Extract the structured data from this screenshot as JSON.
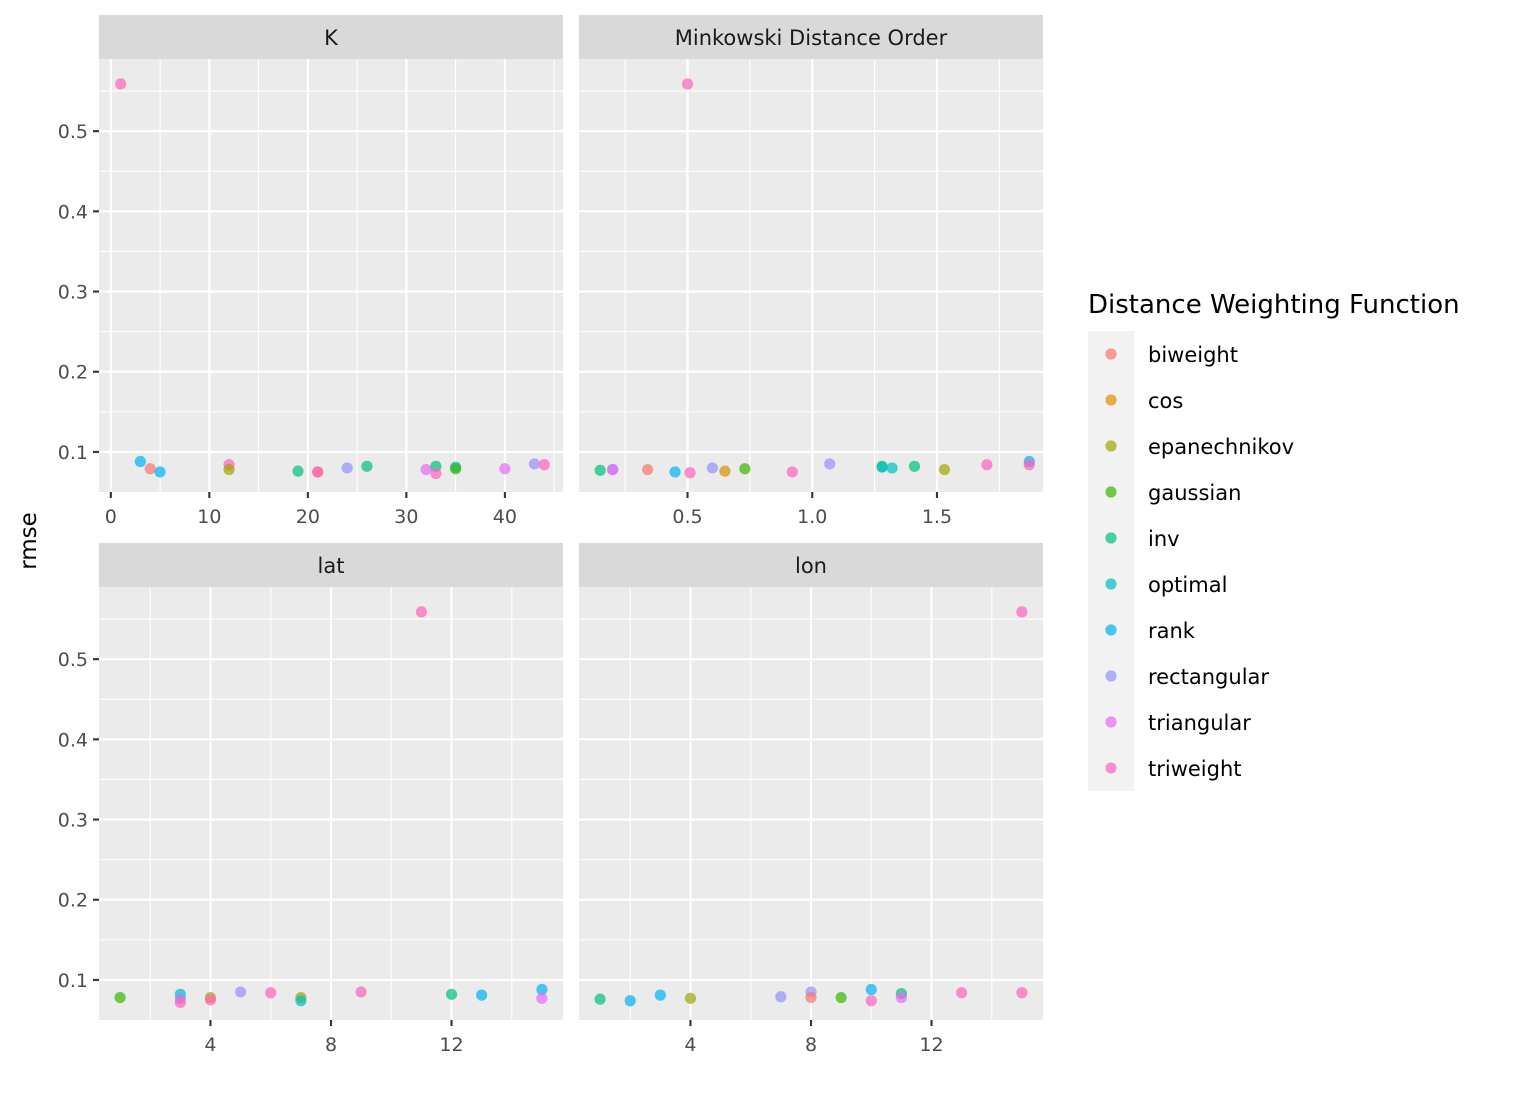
{
  "chart_data": {
    "type": "scatter",
    "ylabel": "rmse",
    "ylim": [
      0.05,
      0.59
    ],
    "y_ticks": [
      0.1,
      0.2,
      0.3,
      0.4,
      0.5
    ],
    "y_tick_labels": [
      "0.1",
      "0.2",
      "0.3",
      "0.4",
      "0.5"
    ],
    "legend": {
      "title": "Distance Weighting Function",
      "position": "right",
      "entries": [
        {
          "name": "biweight",
          "color": "#F8766D"
        },
        {
          "name": "cos",
          "color": "#D89000"
        },
        {
          "name": "epanechnikov",
          "color": "#A3A500"
        },
        {
          "name": "gaussian",
          "color": "#39B600"
        },
        {
          "name": "inv",
          "color": "#00BF7D"
        },
        {
          "name": "optimal",
          "color": "#00BFC4"
        },
        {
          "name": "rank",
          "color": "#00B0F6"
        },
        {
          "name": "rectangular",
          "color": "#9590FF"
        },
        {
          "name": "triangular",
          "color": "#E76BF3"
        },
        {
          "name": "triweight",
          "color": "#FF62BC"
        }
      ]
    },
    "panels": [
      {
        "strip": "K",
        "xlim": [
          -1.2,
          45.9
        ],
        "x_ticks": [
          0,
          10,
          20,
          30,
          40
        ],
        "x_tick_labels": [
          "0",
          "10",
          "20",
          "30",
          "40"
        ],
        "x_minor": [
          5,
          15,
          25,
          35,
          45
        ],
        "points": [
          {
            "x": 1,
            "y": 0.559,
            "s": "triweight"
          },
          {
            "x": 3,
            "y": 0.088,
            "s": "rank"
          },
          {
            "x": 4,
            "y": 0.079,
            "s": "biweight"
          },
          {
            "x": 5,
            "y": 0.075,
            "s": "rank"
          },
          {
            "x": 12,
            "y": 0.084,
            "s": "triweight"
          },
          {
            "x": 12,
            "y": 0.078,
            "s": "epanechnikov"
          },
          {
            "x": 19,
            "y": 0.076,
            "s": "inv"
          },
          {
            "x": 21,
            "y": 0.075,
            "s": "biweight"
          },
          {
            "x": 21,
            "y": 0.075,
            "s": "triweight"
          },
          {
            "x": 24,
            "y": 0.08,
            "s": "rectangular"
          },
          {
            "x": 26,
            "y": 0.082,
            "s": "inv"
          },
          {
            "x": 32,
            "y": 0.078,
            "s": "triangular"
          },
          {
            "x": 33,
            "y": 0.082,
            "s": "inv"
          },
          {
            "x": 33,
            "y": 0.073,
            "s": "triweight"
          },
          {
            "x": 35,
            "y": 0.081,
            "s": "optimal"
          },
          {
            "x": 35,
            "y": 0.079,
            "s": "gaussian"
          },
          {
            "x": 40,
            "y": 0.079,
            "s": "triangular"
          },
          {
            "x": 43,
            "y": 0.085,
            "s": "rectangular"
          },
          {
            "x": 44,
            "y": 0.084,
            "s": "triweight"
          }
        ]
      },
      {
        "strip": "Minkowski Distance Order",
        "xlim": [
          0.065,
          1.925
        ],
        "x_ticks": [
          0.5,
          1.0,
          1.5
        ],
        "x_tick_labels": [
          "0.5",
          "1.0",
          "1.5"
        ],
        "x_minor": [
          0.25,
          0.75,
          1.25,
          1.75
        ],
        "points": [
          {
            "x": 0.15,
            "y": 0.077,
            "s": "inv"
          },
          {
            "x": 0.2,
            "y": 0.078,
            "s": "rectangular"
          },
          {
            "x": 0.2,
            "y": 0.078,
            "s": "triangular"
          },
          {
            "x": 0.34,
            "y": 0.078,
            "s": "biweight"
          },
          {
            "x": 0.5,
            "y": 0.559,
            "s": "triweight"
          },
          {
            "x": 0.45,
            "y": 0.075,
            "s": "rank"
          },
          {
            "x": 0.51,
            "y": 0.074,
            "s": "triweight"
          },
          {
            "x": 0.6,
            "y": 0.08,
            "s": "rectangular"
          },
          {
            "x": 0.65,
            "y": 0.076,
            "s": "cos"
          },
          {
            "x": 0.73,
            "y": 0.079,
            "s": "gaussian"
          },
          {
            "x": 0.92,
            "y": 0.075,
            "s": "triweight"
          },
          {
            "x": 1.07,
            "y": 0.085,
            "s": "rectangular"
          },
          {
            "x": 1.28,
            "y": 0.082,
            "s": "inv"
          },
          {
            "x": 1.28,
            "y": 0.081,
            "s": "optimal"
          },
          {
            "x": 1.32,
            "y": 0.08,
            "s": "optimal"
          },
          {
            "x": 1.41,
            "y": 0.082,
            "s": "inv"
          },
          {
            "x": 1.53,
            "y": 0.078,
            "s": "epanechnikov"
          },
          {
            "x": 1.7,
            "y": 0.084,
            "s": "triweight"
          },
          {
            "x": 1.87,
            "y": 0.088,
            "s": "rank"
          },
          {
            "x": 1.87,
            "y": 0.084,
            "s": "triweight"
          }
        ]
      },
      {
        "strip": "lat",
        "xlim": [
          0.3,
          15.7
        ],
        "x_ticks": [
          4,
          8,
          12
        ],
        "x_tick_labels": [
          "4",
          "8",
          "12"
        ],
        "x_minor": [
          2,
          6,
          10,
          14
        ],
        "points": [
          {
            "x": 1,
            "y": 0.078,
            "s": "gaussian"
          },
          {
            "x": 3,
            "y": 0.082,
            "s": "optimal"
          },
          {
            "x": 3,
            "y": 0.077,
            "s": "rectangular"
          },
          {
            "x": 3,
            "y": 0.072,
            "s": "triweight"
          },
          {
            "x": 4,
            "y": 0.078,
            "s": "epanechnikov"
          },
          {
            "x": 4,
            "y": 0.075,
            "s": "triweight"
          },
          {
            "x": 5,
            "y": 0.085,
            "s": "rectangular"
          },
          {
            "x": 6,
            "y": 0.084,
            "s": "triweight"
          },
          {
            "x": 7,
            "y": 0.078,
            "s": "epanechnikov"
          },
          {
            "x": 7,
            "y": 0.074,
            "s": "optimal"
          },
          {
            "x": 9,
            "y": 0.085,
            "s": "triweight"
          },
          {
            "x": 11,
            "y": 0.559,
            "s": "triweight"
          },
          {
            "x": 12,
            "y": 0.082,
            "s": "inv"
          },
          {
            "x": 13,
            "y": 0.081,
            "s": "rank"
          },
          {
            "x": 15,
            "y": 0.088,
            "s": "rank"
          },
          {
            "x": 15,
            "y": 0.077,
            "s": "triangular"
          }
        ]
      },
      {
        "strip": "lon",
        "xlim": [
          0.3,
          15.7
        ],
        "x_ticks": [
          4,
          8,
          12
        ],
        "x_tick_labels": [
          "4",
          "8",
          "12"
        ],
        "x_minor": [
          2,
          6,
          10,
          14
        ],
        "points": [
          {
            "x": 1,
            "y": 0.076,
            "s": "inv"
          },
          {
            "x": 2,
            "y": 0.074,
            "s": "rank"
          },
          {
            "x": 3,
            "y": 0.081,
            "s": "rank"
          },
          {
            "x": 4,
            "y": 0.077,
            "s": "epanechnikov"
          },
          {
            "x": 7,
            "y": 0.079,
            "s": "rectangular"
          },
          {
            "x": 8,
            "y": 0.085,
            "s": "rectangular"
          },
          {
            "x": 8,
            "y": 0.078,
            "s": "biweight"
          },
          {
            "x": 9,
            "y": 0.078,
            "s": "gaussian"
          },
          {
            "x": 10,
            "y": 0.088,
            "s": "rank"
          },
          {
            "x": 10,
            "y": 0.074,
            "s": "triweight"
          },
          {
            "x": 11,
            "y": 0.083,
            "s": "inv"
          },
          {
            "x": 11,
            "y": 0.078,
            "s": "triangular"
          },
          {
            "x": 13,
            "y": 0.084,
            "s": "triweight"
          },
          {
            "x": 15,
            "y": 0.559,
            "s": "triweight"
          },
          {
            "x": 15,
            "y": 0.084,
            "s": "triweight"
          }
        ]
      }
    ]
  }
}
